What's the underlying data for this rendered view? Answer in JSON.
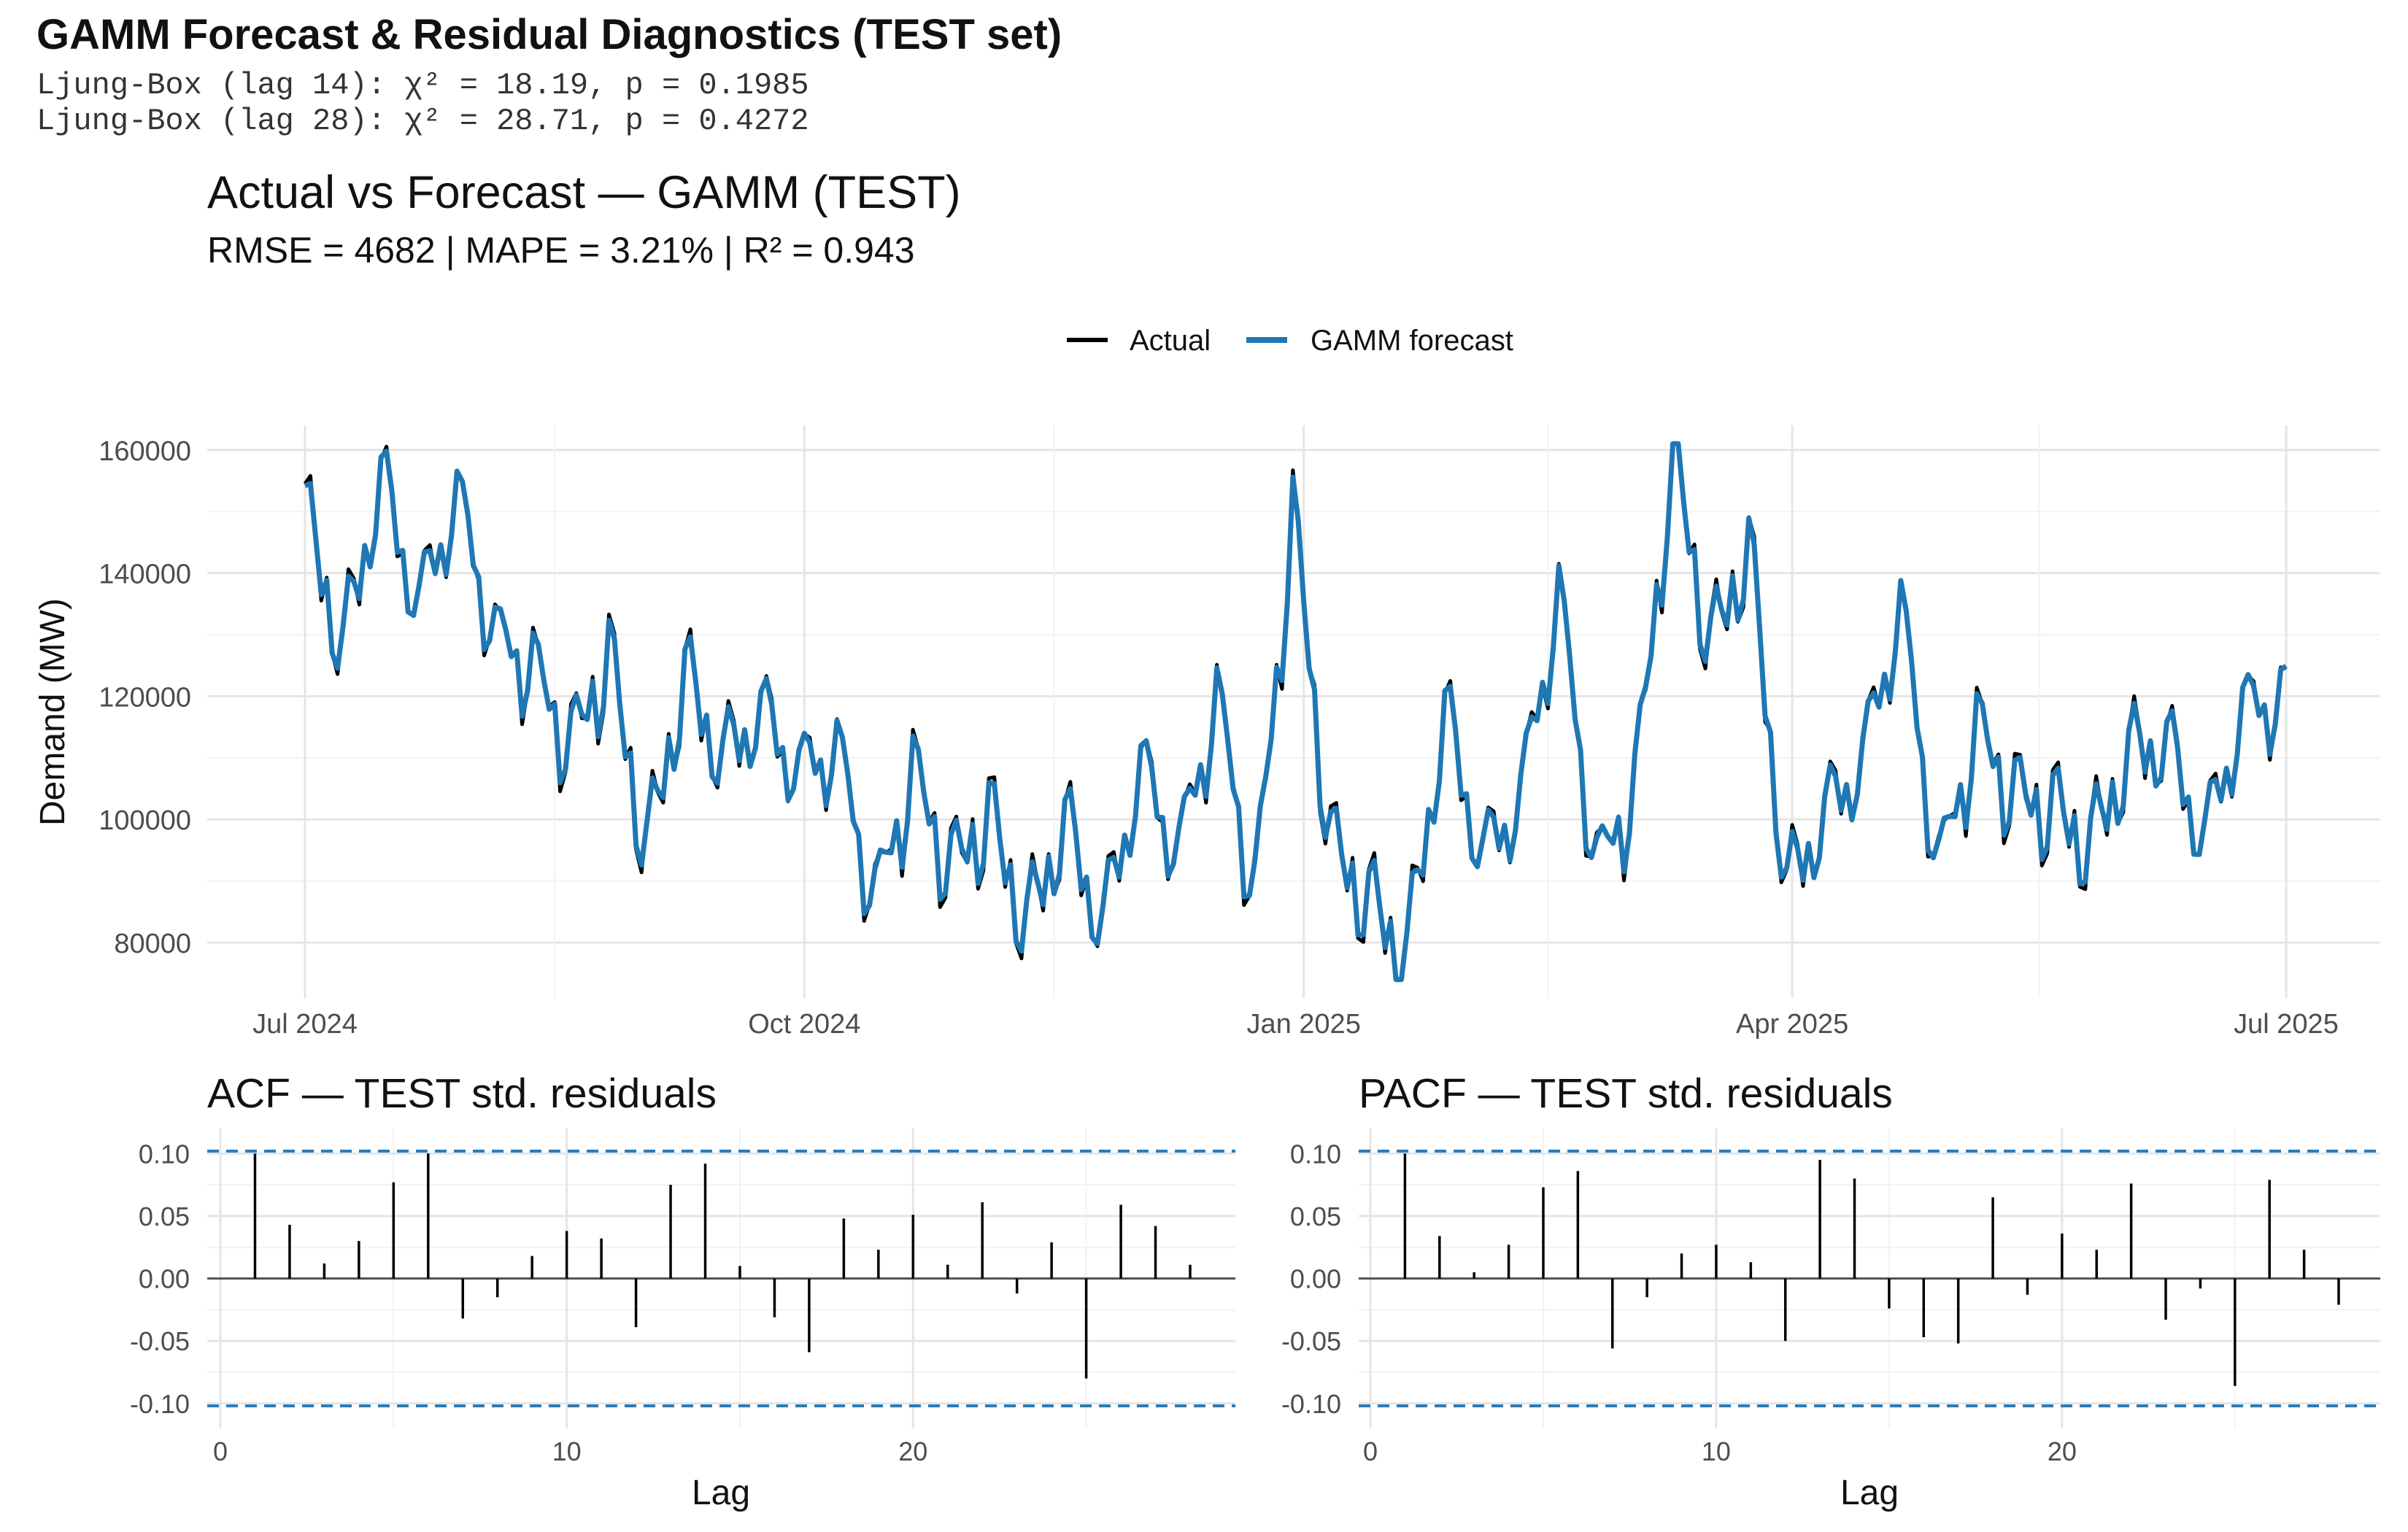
{
  "figure": {
    "title": "GAMM Forecast & Residual Diagnostics (TEST set)",
    "ljung_box": [
      "Ljung-Box (lag 14): χ² = 18.19, p = 0.1985",
      "Ljung-Box (lag 28): χ² = 28.71, p = 0.4272"
    ]
  },
  "colors": {
    "actual": "#000000",
    "forecast": "#1f77b4",
    "confidence_band": "#2a7ab8",
    "grid_major": "#e5e5e5",
    "grid_minor": "#f2f2f2",
    "axis_text": "#4d4d4d"
  },
  "chart_data": [
    {
      "type": "line",
      "title": "Actual vs Forecast — GAMM (TEST)",
      "subtitle": "RMSE = 4682  |  MAPE = 3.21%  |  R² = 0.943",
      "xlabel": "",
      "ylabel": "Demand (MW)",
      "legend_position": "top",
      "grid": true,
      "x_start": "2024-07-01",
      "x_end": "2025-07-01",
      "x_ticks": [
        "Jul 2024",
        "Oct 2024",
        "Jan 2025",
        "Apr 2025",
        "Jul 2025"
      ],
      "x_tick_dates": [
        "2024-07-01",
        "2024-10-01",
        "2025-01-01",
        "2025-04-01",
        "2025-07-01"
      ],
      "ylim": [
        71000,
        164000
      ],
      "y_ticks": [
        80000,
        100000,
        120000,
        140000,
        160000
      ],
      "anchor_dates": [
        "2024-07-01",
        "2024-07-08",
        "2024-07-15",
        "2024-07-22",
        "2024-07-29",
        "2024-08-05",
        "2024-08-12",
        "2024-08-19",
        "2024-08-26",
        "2024-09-02",
        "2024-09-09",
        "2024-09-16",
        "2024-09-23",
        "2024-09-30",
        "2024-10-07",
        "2024-10-14",
        "2024-10-21",
        "2024-10-28",
        "2024-11-04",
        "2024-11-11",
        "2024-11-18",
        "2024-11-25",
        "2024-12-02",
        "2024-12-09",
        "2024-12-16",
        "2024-12-23",
        "2024-12-30",
        "2025-01-06",
        "2025-01-13",
        "2025-01-20",
        "2025-01-27",
        "2025-02-03",
        "2025-02-10",
        "2025-02-17",
        "2025-02-24",
        "2025-03-03",
        "2025-03-10",
        "2025-03-17",
        "2025-03-24",
        "2025-03-31",
        "2025-04-07",
        "2025-04-14",
        "2025-04-21",
        "2025-04-28",
        "2025-05-05",
        "2025-05-12",
        "2025-05-19",
        "2025-05-26",
        "2025-06-02",
        "2025-06-09",
        "2025-06-16",
        "2025-06-23",
        "2025-06-30"
      ],
      "anchor_values": [
        150000,
        128000,
        156000,
        135000,
        153000,
        130000,
        125000,
        112000,
        127000,
        95000,
        124000,
        110000,
        118000,
        108000,
        112000,
        87000,
        108000,
        92000,
        101000,
        83000,
        100000,
        83000,
        109000,
        95000,
        120000,
        88000,
        150000,
        96000,
        87000,
        78000,
        118000,
        94000,
        104000,
        137000,
        92000,
        105000,
        160000,
        128000,
        145000,
        89000,
        101000,
        110000,
        135000,
        92000,
        115000,
        104000,
        102000,
        96000,
        111000,
        113000,
        97000,
        118000,
        120000
      ],
      "series": [
        {
          "name": "Actual",
          "amp": 7500
        },
        {
          "name": "GAMM forecast",
          "amp": 7000
        }
      ]
    },
    {
      "type": "bar",
      "title": "ACF — TEST std. residuals",
      "xlabel": "Lag",
      "ylabel": "",
      "xlim": [
        0,
        29
      ],
      "ylim": [
        -0.12,
        0.12
      ],
      "x_ticks": [
        0,
        10,
        20
      ],
      "y_ticks": [
        0.1,
        0.05,
        0.0,
        -0.05,
        -0.1
      ],
      "y_tick_labels": [
        "0.10",
        "0.05",
        "0.00",
        "-0.05",
        "-0.10"
      ],
      "confidence_bound": 0.102,
      "lags": [
        1,
        2,
        3,
        4,
        5,
        6,
        7,
        8,
        9,
        10,
        11,
        12,
        13,
        14,
        15,
        16,
        17,
        18,
        19,
        20,
        21,
        22,
        23,
        24,
        25,
        26,
        27,
        28
      ],
      "values": [
        0.1,
        0.043,
        0.012,
        0.03,
        0.077,
        0.1,
        -0.032,
        -0.015,
        0.018,
        0.038,
        0.032,
        -0.039,
        0.075,
        0.092,
        0.01,
        -0.031,
        -0.059,
        0.048,
        0.023,
        0.051,
        0.011,
        0.061,
        -0.012,
        0.029,
        -0.08,
        0.059,
        0.042,
        0.011
      ]
    },
    {
      "type": "bar",
      "title": "PACF — TEST std. residuals",
      "xlabel": "Lag",
      "ylabel": "",
      "xlim": [
        0,
        29
      ],
      "ylim": [
        -0.12,
        0.12
      ],
      "x_ticks": [
        0,
        10,
        20
      ],
      "y_ticks": [
        0.1,
        0.05,
        0.0,
        -0.05,
        -0.1
      ],
      "y_tick_labels": [
        "0.10",
        "0.05",
        "0.00",
        "-0.05",
        "-0.10"
      ],
      "confidence_bound": 0.102,
      "lags": [
        1,
        2,
        3,
        4,
        5,
        6,
        7,
        8,
        9,
        10,
        11,
        12,
        13,
        14,
        15,
        16,
        17,
        18,
        19,
        20,
        21,
        22,
        23,
        24,
        25,
        26,
        27,
        28
      ],
      "values": [
        0.1,
        0.034,
        0.005,
        0.027,
        0.073,
        0.086,
        -0.056,
        -0.015,
        0.02,
        0.027,
        0.013,
        -0.05,
        0.095,
        0.08,
        -0.024,
        -0.047,
        -0.052,
        0.065,
        -0.013,
        0.036,
        0.023,
        0.076,
        -0.033,
        -0.008,
        -0.086,
        0.079,
        0.023,
        -0.021
      ]
    }
  ]
}
